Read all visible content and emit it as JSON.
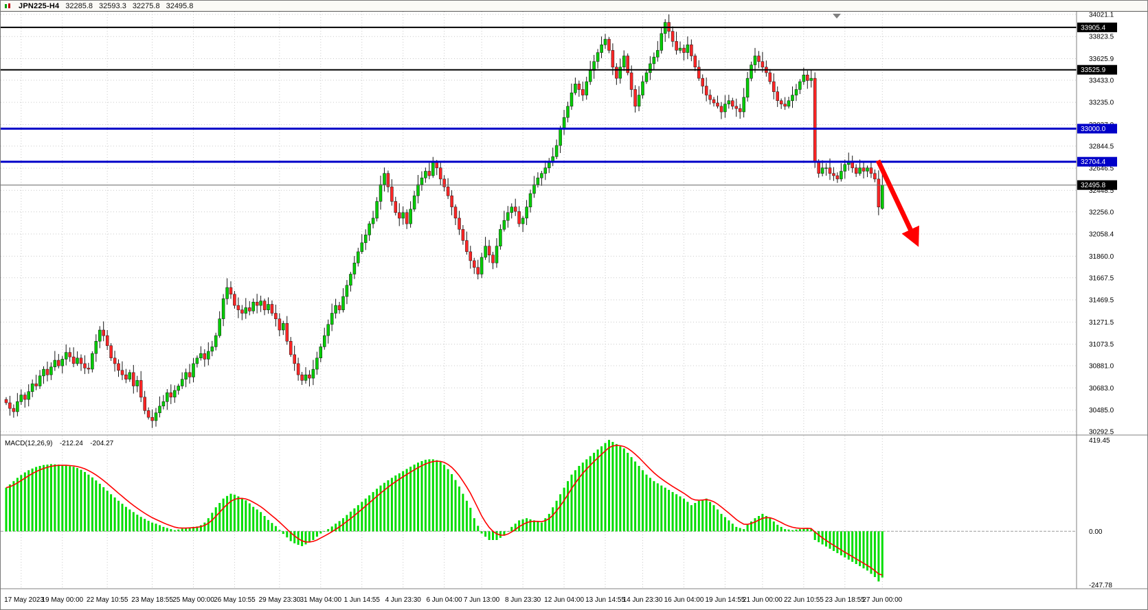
{
  "title_bar": {
    "symbol": "JPN225-H4",
    "open": "32285.8",
    "high": "32593.3",
    "low": "32275.8",
    "close": "32495.8"
  },
  "colors": {
    "background": "#FFFFFF",
    "grid": "#C9C9C9",
    "bull": "#00CC00",
    "bear": "#FF2626",
    "outline": "#151515",
    "axis_separator": "#808080",
    "bid_line": "#666666",
    "arrow": "#FF0000"
  },
  "chart_data": [
    {
      "type": "candlestick",
      "symbol": "JPN225",
      "timeframe": "H4",
      "title": "JPN225-H4 price pane",
      "ylim": [
        30256,
        34033
      ],
      "closes": [
        30550,
        30500,
        30470,
        30560,
        30620,
        30580,
        30650,
        30720,
        30700,
        30790,
        30850,
        30800,
        30870,
        30930,
        30880,
        30940,
        31000,
        30960,
        30900,
        30950,
        30900,
        30860,
        30850,
        30990,
        31100,
        31200,
        31150,
        31060,
        30950,
        30900,
        30840,
        30800,
        30760,
        30820,
        30700,
        30750,
        30600,
        30480,
        30420,
        30390,
        30460,
        30520,
        30560,
        30640,
        30600,
        30660,
        30700,
        30760,
        30820,
        30780,
        30900,
        30950,
        30990,
        30940,
        31010,
        31050,
        31150,
        31300,
        31480,
        31580,
        31520,
        31420,
        31380,
        31350,
        31400,
        31370,
        31450,
        31420,
        31460,
        31380,
        31430,
        31350,
        31300,
        31200,
        31260,
        31100,
        30980,
        30900,
        30800,
        30750,
        30800,
        30770,
        30850,
        30950,
        31050,
        31150,
        31250,
        31350,
        31420,
        31380,
        31500,
        31600,
        31700,
        31800,
        31900,
        31980,
        32050,
        32150,
        32200,
        32350,
        32500,
        32600,
        32480,
        32350,
        32250,
        32200,
        32250,
        32150,
        32280,
        32400,
        32500,
        32560,
        32620,
        32580,
        32700,
        32650,
        32550,
        32480,
        32400,
        32300,
        32200,
        32100,
        32000,
        31900,
        31820,
        31760,
        31700,
        31850,
        31950,
        31870,
        31800,
        31950,
        32100,
        32180,
        32250,
        32300,
        32260,
        32150,
        32200,
        32300,
        32420,
        32500,
        32560,
        32600,
        32650,
        32700,
        32750,
        32850,
        33000,
        33100,
        33200,
        33320,
        33400,
        33350,
        33300,
        33420,
        33520,
        33600,
        33680,
        33750,
        33800,
        33700,
        33550,
        33450,
        33550,
        33650,
        33500,
        33350,
        33200,
        33300,
        33420,
        33500,
        33580,
        33640,
        33700,
        33850,
        33950,
        33870,
        33780,
        33700,
        33720,
        33680,
        33750,
        33650,
        33550,
        33450,
        33380,
        33300,
        33260,
        33230,
        33200,
        33150,
        33220,
        33250,
        33200,
        33180,
        33150,
        33280,
        33450,
        33570,
        33650,
        33600,
        33550,
        33500,
        33420,
        33330,
        33250,
        33220,
        33200,
        33250,
        33300,
        33350,
        33420,
        33480,
        33430,
        33450,
        32700,
        32600,
        32650,
        32650,
        32600,
        32580,
        32550,
        32620,
        32680,
        32700,
        32650,
        32600,
        32650,
        32620,
        32650,
        32600,
        32550,
        32300,
        32496
      ],
      "price_axis_labels": [
        "34021.1",
        "33823.5",
        "33625.9",
        "33433.0",
        "33235.0",
        "33037.0",
        "32844.5",
        "32646.5",
        "32448.5",
        "32256.0",
        "32058.4",
        "31860.0",
        "31667.5",
        "31469.5",
        "31271.5",
        "31073.5",
        "30881.0",
        "30683.0",
        "30485.0",
        "30292.5"
      ],
      "hlines": [
        {
          "price": 33905.4,
          "label": "33905.4",
          "color": "#000000",
          "width": 2
        },
        {
          "price": 33525.9,
          "label": "33525.9",
          "color": "#000000",
          "width": 2
        },
        {
          "price": 33000.0,
          "label": "33000.0",
          "color": "#0000C8",
          "width": 3
        },
        {
          "price": 32704.4,
          "label": "32704.4",
          "color": "#0000C8",
          "width": 3
        }
      ],
      "current_price": {
        "value": 32495.8,
        "label": "32495.8"
      },
      "time_labels": [
        {
          "label": "17 May 2023",
          "i": 4
        },
        {
          "label": "19 May 00:00",
          "i": 15
        },
        {
          "label": "22 May 10:55",
          "i": 27
        },
        {
          "label": "23 May 18:55",
          "i": 39
        },
        {
          "label": "25 May 00:00",
          "i": 50
        },
        {
          "label": "26 May 10:55",
          "i": 61
        },
        {
          "label": "29 May 23:30",
          "i": 73
        },
        {
          "label": "31 May 04:00",
          "i": 84
        },
        {
          "label": "1 Jun 14:55",
          "i": 95
        },
        {
          "label": "4 Jun 23:30",
          "i": 106
        },
        {
          "label": "6 Jun 04:00",
          "i": 117
        },
        {
          "label": "7 Jun 13:00",
          "i": 127
        },
        {
          "label": "8 Jun 23:30",
          "i": 138
        },
        {
          "label": "12 Jun 04:00",
          "i": 149
        },
        {
          "label": "13 Jun 14:55",
          "i": 160
        },
        {
          "label": "14 Jun 23:30",
          "i": 170
        },
        {
          "label": "16 Jun 04:00",
          "i": 181
        },
        {
          "label": "19 Jun 14:55",
          "i": 192
        },
        {
          "label": "21 Jun 00:00",
          "i": 202
        },
        {
          "label": "22 Jun 10:55",
          "i": 213
        },
        {
          "label": "23 Jun 18:55",
          "i": 224
        },
        {
          "label": "27 Jun 00:00",
          "i": 234
        }
      ]
    },
    {
      "type": "bar",
      "title": "MACD(12,26,9)",
      "current_values": [
        "-212.24",
        "-204.27"
      ],
      "y_axis_labels": [
        "419.45",
        "0.00",
        "-247.78"
      ],
      "ylim": [
        -247.78,
        419.45
      ],
      "histogram_color": "#00DD00",
      "signal_color": "#FF0000",
      "values": [
        200,
        215,
        230,
        245,
        258,
        270,
        280,
        288,
        295,
        300,
        304,
        306,
        308,
        307,
        306,
        304,
        302,
        299,
        296,
        290,
        282,
        272,
        260,
        247,
        233,
        218,
        202,
        186,
        170,
        155,
        140,
        126,
        112,
        100,
        88,
        76,
        66,
        57,
        48,
        40,
        35,
        28,
        20,
        15,
        10,
        5,
        8,
        12,
        15,
        18,
        20,
        22,
        28,
        40,
        60,
        85,
        110,
        130,
        150,
        162,
        172,
        168,
        160,
        152,
        142,
        128,
        112,
        100,
        88,
        70,
        52,
        38,
        24,
        6,
        -12,
        -28,
        -45,
        -55,
        -62,
        -68,
        -60,
        -50,
        -40,
        -25,
        -10,
        0,
        10,
        22,
        35,
        47,
        60,
        75,
        90,
        105,
        120,
        135,
        150,
        165,
        180,
        195,
        210,
        222,
        234,
        245,
        256,
        266,
        276,
        286,
        296,
        306,
        315,
        322,
        328,
        330,
        330,
        326,
        318,
        305,
        285,
        262,
        235,
        205,
        172,
        140,
        108,
        60,
        25,
        -10,
        -25,
        -40,
        -40,
        -40,
        -30,
        -20,
        0,
        20,
        35,
        50,
        55,
        60,
        55,
        50,
        45,
        40,
        60,
        80,
        110,
        140,
        170,
        200,
        230,
        260,
        280,
        300,
        315,
        330,
        345,
        360,
        375,
        390,
        405,
        419,
        410,
        400,
        390,
        380,
        360,
        340,
        320,
        300,
        280,
        260,
        245,
        230,
        220,
        210,
        200,
        190,
        180,
        170,
        160,
        150,
        135,
        120,
        130,
        140,
        145,
        150,
        135,
        120,
        100,
        80,
        65,
        50,
        35,
        20,
        15,
        10,
        30,
        45,
        60,
        70,
        80,
        70,
        60,
        45,
        30,
        20,
        10,
        8,
        5,
        8,
        10,
        12,
        15,
        10,
        -40,
        -50,
        -60,
        -70,
        -80,
        -90,
        -100,
        -110,
        -120,
        -130,
        -140,
        -150,
        -160,
        -170,
        -180,
        -195,
        -210,
        -230,
        -212
      ]
    }
  ],
  "annotation": {
    "type": "arrow",
    "color": "#FF0000",
    "from": [
      1277,
      217
    ],
    "to": [
      1332,
      334
    ]
  },
  "shift_marker": {
    "x": 1217
  }
}
